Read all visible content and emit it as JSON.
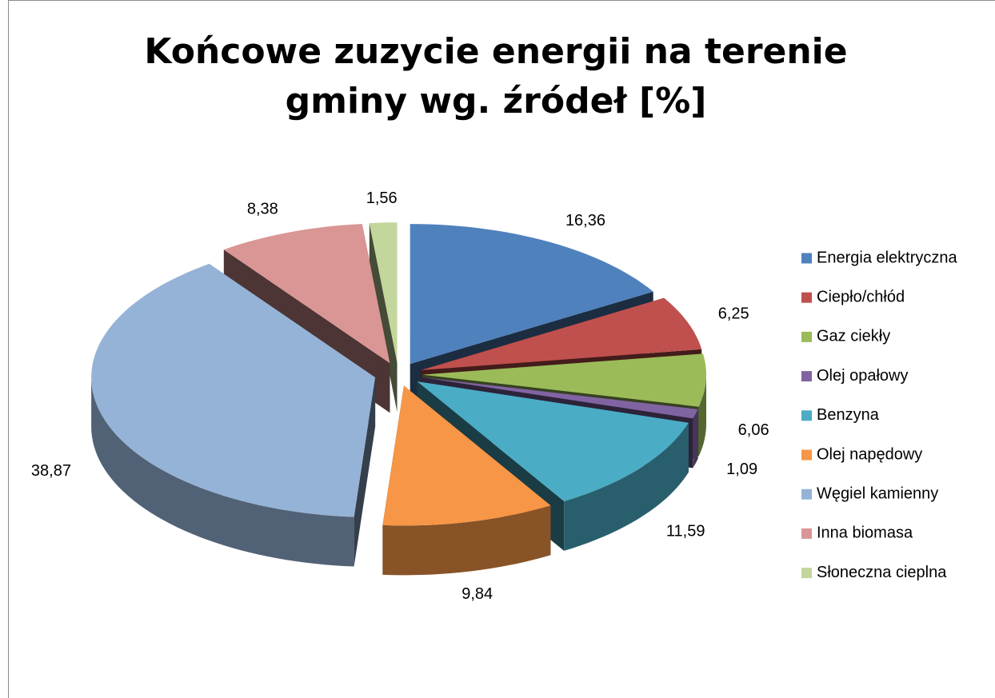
{
  "chart_data": {
    "type": "pie",
    "title": "Końcowe zuzycie energii na terenie gminy wg. źródeł [%]",
    "categories": [
      "Energia elektryczna",
      "Ciepło/chłód",
      "Gaz ciekły",
      "Olej opałowy",
      "Benzyna",
      "Olej napędowy",
      "Węgiel kamienny",
      "Inna biomasa",
      "Słoneczna cieplna"
    ],
    "values": [
      16.36,
      6.25,
      6.06,
      1.09,
      11.59,
      9.84,
      38.87,
      8.38,
      1.56
    ],
    "value_labels": [
      "16,36",
      "6,25",
      "6,06",
      "1,09",
      "11,59",
      "9,84",
      "38,87",
      "8,38",
      "1,56"
    ],
    "colors": [
      "#4f81bd",
      "#c0504d",
      "#9bbb59",
      "#8064a2",
      "#4bacc6",
      "#f79646",
      "#95b3d7",
      "#d99694",
      "#c3d69b"
    ],
    "legend": "right"
  }
}
